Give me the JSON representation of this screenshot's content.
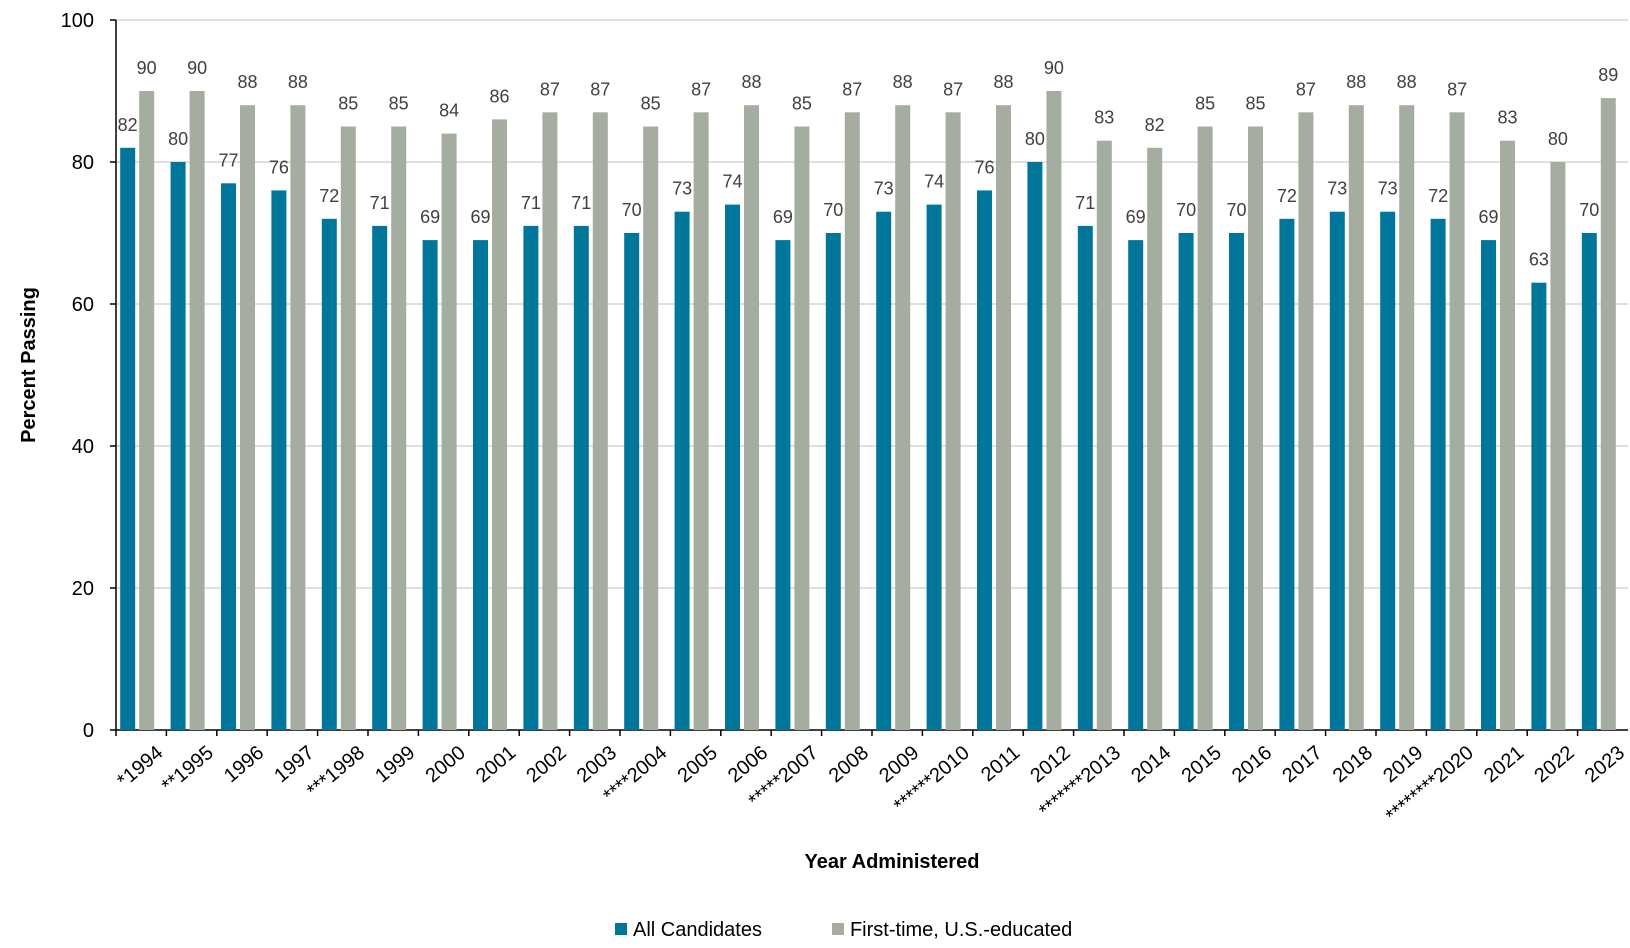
{
  "chart_data": {
    "type": "bar",
    "x_label": "Year Administered",
    "y_label": "Percent Passing",
    "categories": [
      "*1994",
      "**1995",
      "1996",
      "1997",
      "***1998",
      "1999",
      "2000",
      "2001",
      "2002",
      "2003",
      "****2004",
      "2005",
      "2006",
      "*****2007",
      "2008",
      "2009",
      "******2010",
      "2011",
      "2012",
      "*******2013",
      "2014",
      "2015",
      "2016",
      "2017",
      "2018",
      "2019",
      "********2020",
      "2021",
      "2022",
      "2023"
    ],
    "series": [
      {
        "name": "All Candidates",
        "color": "#00779a",
        "values": [
          82,
          80,
          77,
          76,
          72,
          71,
          69,
          69,
          71,
          71,
          70,
          73,
          74,
          69,
          70,
          73,
          74,
          76,
          80,
          71,
          69,
          70,
          70,
          72,
          73,
          73,
          72,
          69,
          63,
          70
        ]
      },
      {
        "name": "First-time, U.S.-educated",
        "color": "#a5ada0",
        "values": [
          90,
          90,
          88,
          88,
          85,
          85,
          84,
          86,
          87,
          87,
          85,
          87,
          88,
          85,
          87,
          88,
          87,
          88,
          90,
          83,
          82,
          85,
          85,
          87,
          88,
          88,
          87,
          83,
          80,
          89
        ]
      }
    ],
    "ylim": [
      0,
      100
    ],
    "yticks": [
      0,
      20,
      40,
      60,
      80,
      100
    ],
    "grid": true,
    "legend": "bottom"
  }
}
